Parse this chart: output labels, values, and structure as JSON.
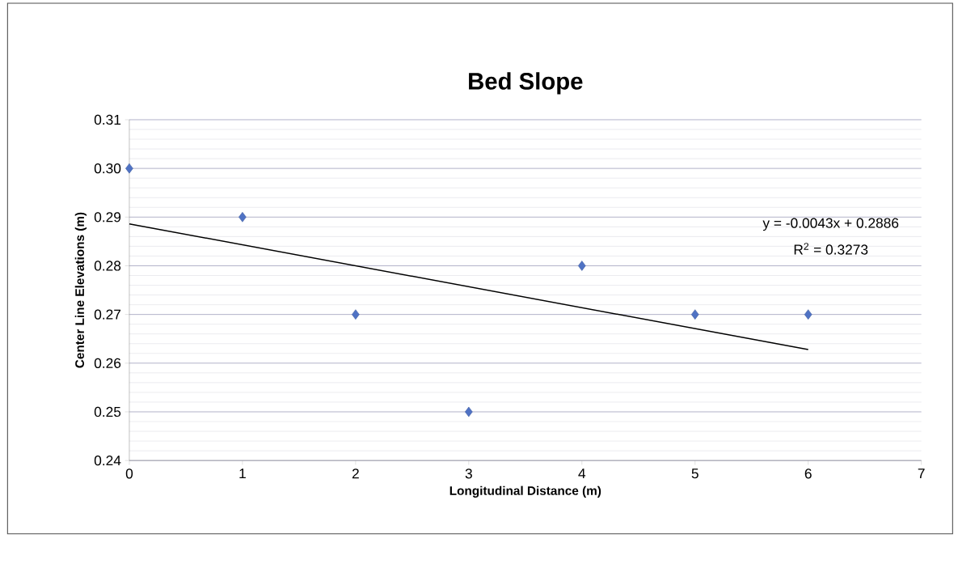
{
  "chart_data": {
    "type": "scatter",
    "title": "Bed Slope",
    "xlabel": "Longitudinal Distance (m)",
    "ylabel": "Center Line Elevations (m)",
    "x": [
      0,
      1,
      2,
      3,
      4,
      5,
      6
    ],
    "series": [
      {
        "color": "#4f72c4",
        "marker": "diamond",
        "values": [
          0.3,
          0.29,
          0.27,
          0.25,
          0.28,
          0.27,
          0.27
        ]
      },
      {
        "type": "line",
        "color": "#000000",
        "marker": "none",
        "x": [
          0,
          6
        ],
        "values": [
          0.2886,
          0.2628
        ]
      }
    ],
    "xlim": [
      0,
      7
    ],
    "ylim": [
      0.24,
      0.31
    ],
    "xticks": [
      0,
      1,
      2,
      3,
      4,
      5,
      6,
      7
    ],
    "yticks": [
      {
        "value": 0.24,
        "label": "0.24"
      },
      {
        "value": 0.25,
        "label": "0.25"
      },
      {
        "value": 0.26,
        "label": "0.26"
      },
      {
        "value": 0.27,
        "label": "0.27"
      },
      {
        "value": 0.28,
        "label": "0.28"
      },
      {
        "value": 0.29,
        "label": "0.29"
      },
      {
        "value": 0.3,
        "label": "0.30"
      },
      {
        "value": 0.31,
        "label": "0.31"
      }
    ],
    "grid": "y",
    "annotations": [
      "y = -0.0043x + 0.2886",
      "R$^{2}$ = 0.3273"
    ]
  }
}
